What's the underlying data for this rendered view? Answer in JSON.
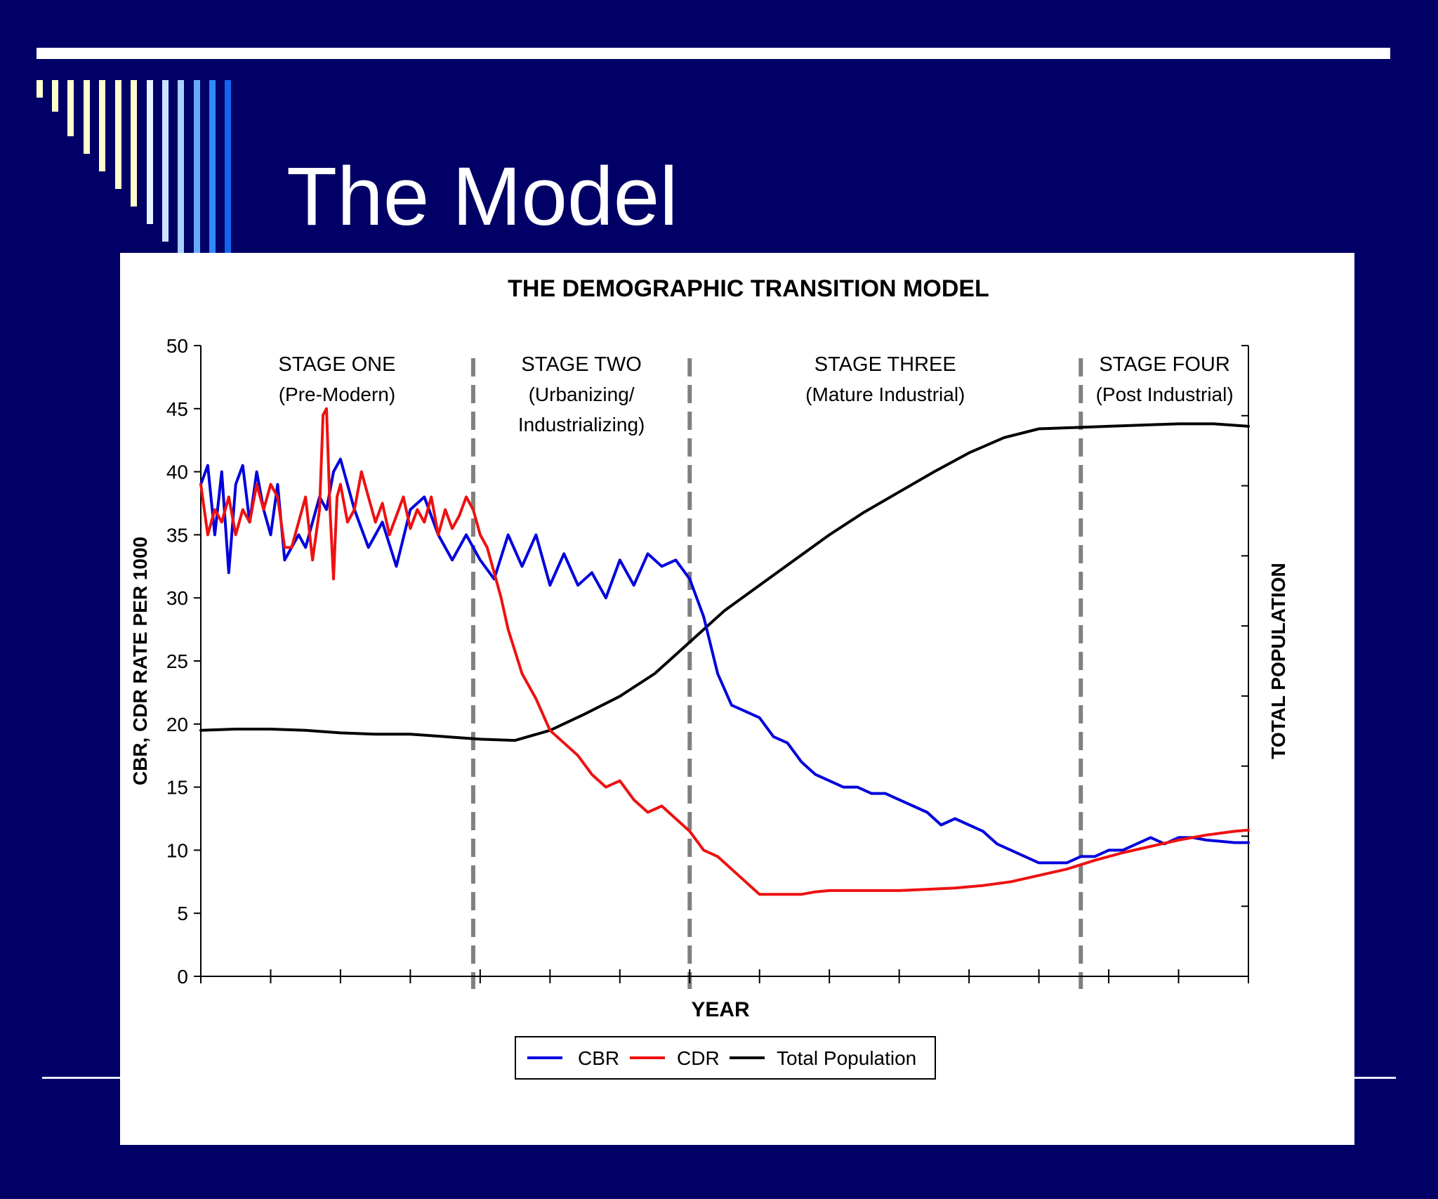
{
  "slide": {
    "title": "The Model"
  },
  "colors": {
    "background": "#000066",
    "cbr": "#0000dd",
    "cdr": "#ee1111",
    "population": "#000000",
    "stage_divider": "#808080"
  },
  "chart_data": {
    "type": "line",
    "title": "THE DEMOGRAPHIC TRANSITION MODEL",
    "xlabel": "YEAR",
    "ylabel": "CBR, CDR RATE PER 1000",
    "ylabel_right": "TOTAL POPULATION",
    "ylim": [
      0,
      50
    ],
    "yticks": [
      0,
      5,
      10,
      15,
      20,
      25,
      30,
      35,
      40,
      45,
      50
    ],
    "xlim": [
      0,
      150
    ],
    "x_tick_count": 15,
    "right_tick_count": 9,
    "grid": false,
    "legend_position": "bottom-center",
    "stages": [
      {
        "label": "STAGE ONE",
        "sublabel": "(Pre-Modern)",
        "sublabel2": ""
      },
      {
        "label": "STAGE TWO",
        "sublabel": "(Urbanizing/",
        "sublabel2": "Industrializing)"
      },
      {
        "label": "STAGE THREE",
        "sublabel": "(Mature Industrial)",
        "sublabel2": ""
      },
      {
        "label": "STAGE FOUR",
        "sublabel": "(Post Industrial)",
        "sublabel2": ""
      }
    ],
    "stage_boundaries": [
      39,
      70,
      126
    ],
    "series": [
      {
        "name": "CBR",
        "color": "#0000dd",
        "x": [
          0,
          1,
          2,
          3,
          4,
          5,
          6,
          7,
          8,
          9,
          10,
          11,
          12,
          13,
          14,
          15,
          16,
          17,
          18,
          19,
          20,
          22,
          24,
          26,
          28,
          30,
          32,
          34,
          36,
          38,
          40,
          42,
          44,
          46,
          48,
          50,
          52,
          54,
          56,
          58,
          60,
          62,
          64,
          66,
          68,
          70,
          72,
          74,
          76,
          78,
          80,
          82,
          84,
          86,
          88,
          90,
          92,
          94,
          96,
          98,
          100,
          102,
          104,
          106,
          108,
          110,
          112,
          114,
          116,
          118,
          120,
          122,
          124,
          126,
          128,
          130,
          132,
          134,
          136,
          138,
          140,
          142,
          144,
          146,
          148,
          150
        ],
        "values": [
          39,
          40.5,
          35,
          40,
          32,
          39,
          40.5,
          36,
          40,
          37,
          35,
          39,
          33,
          34,
          35,
          34,
          36,
          38,
          37,
          40,
          41,
          37,
          34,
          36,
          32.5,
          37,
          38,
          35,
          33,
          35,
          33,
          31.5,
          35,
          32.5,
          35,
          31,
          33.5,
          31,
          32,
          30,
          33,
          31,
          33.5,
          32.5,
          33,
          31.5,
          28.5,
          24,
          21.5,
          21,
          20.5,
          19,
          18.5,
          17,
          16,
          15.5,
          15,
          15,
          14.5,
          14.5,
          14,
          13.5,
          13,
          12,
          12.5,
          12,
          11.5,
          10.5,
          10,
          9.5,
          9,
          9,
          9,
          9.5,
          9.5,
          10,
          10,
          10.5,
          11,
          10.5,
          11,
          11,
          10.8,
          10.7,
          10.6,
          10.6
        ]
      },
      {
        "name": "CDR",
        "color": "#ee1111",
        "x": [
          0,
          1,
          2,
          3,
          4,
          5,
          6,
          7,
          8,
          9,
          10,
          11,
          12,
          13,
          14,
          15,
          16,
          17,
          17.5,
          18,
          18.5,
          19,
          19.5,
          20,
          21,
          22,
          23,
          24,
          25,
          26,
          27,
          28,
          29,
          30,
          31,
          32,
          33,
          34,
          35,
          36,
          37,
          38,
          39,
          40,
          41,
          42,
          43,
          44,
          46,
          48,
          50,
          52,
          54,
          56,
          58,
          60,
          62,
          64,
          66,
          68,
          70,
          72,
          74,
          76,
          78,
          80,
          82,
          84,
          86,
          88,
          90,
          92,
          94,
          96,
          100,
          104,
          108,
          112,
          116,
          120,
          124,
          128,
          132,
          136,
          140,
          144,
          148,
          150
        ],
        "values": [
          39,
          35,
          37,
          36,
          38,
          35,
          37,
          36,
          39,
          37,
          39,
          38,
          34,
          34,
          36,
          38,
          33,
          37,
          44.5,
          45,
          37,
          31.5,
          38,
          39,
          36,
          37,
          40,
          38,
          36,
          37.5,
          35,
          36.5,
          38,
          35.5,
          37,
          36,
          38,
          35,
          37,
          35.5,
          36.5,
          38,
          37,
          35,
          34,
          32,
          30,
          27.5,
          24,
          22,
          19.5,
          18.5,
          17.5,
          16,
          15,
          15.5,
          14,
          13,
          13.5,
          12.5,
          11.5,
          10,
          9.5,
          8.5,
          7.5,
          6.5,
          6.5,
          6.5,
          6.5,
          6.7,
          6.8,
          6.8,
          6.8,
          6.8,
          6.8,
          6.9,
          7,
          7.2,
          7.5,
          8,
          8.5,
          9.2,
          9.8,
          10.3,
          10.8,
          11.2,
          11.5,
          11.6
        ]
      },
      {
        "name": "Total Population",
        "color": "#000000",
        "x": [
          0,
          5,
          10,
          15,
          20,
          25,
          30,
          35,
          40,
          45,
          50,
          55,
          60,
          65,
          70,
          75,
          80,
          85,
          90,
          95,
          100,
          105,
          110,
          115,
          120,
          125,
          130,
          135,
          140,
          145,
          150
        ],
        "values": [
          19.5,
          19.6,
          19.6,
          19.5,
          19.3,
          19.2,
          19.2,
          19.0,
          18.8,
          18.7,
          19.5,
          20.8,
          22.2,
          24.0,
          26.5,
          29.0,
          31.0,
          33.0,
          35.0,
          36.8,
          38.4,
          40.0,
          41.5,
          42.7,
          43.4,
          43.5,
          43.6,
          43.7,
          43.8,
          43.8,
          43.6
        ]
      }
    ]
  }
}
